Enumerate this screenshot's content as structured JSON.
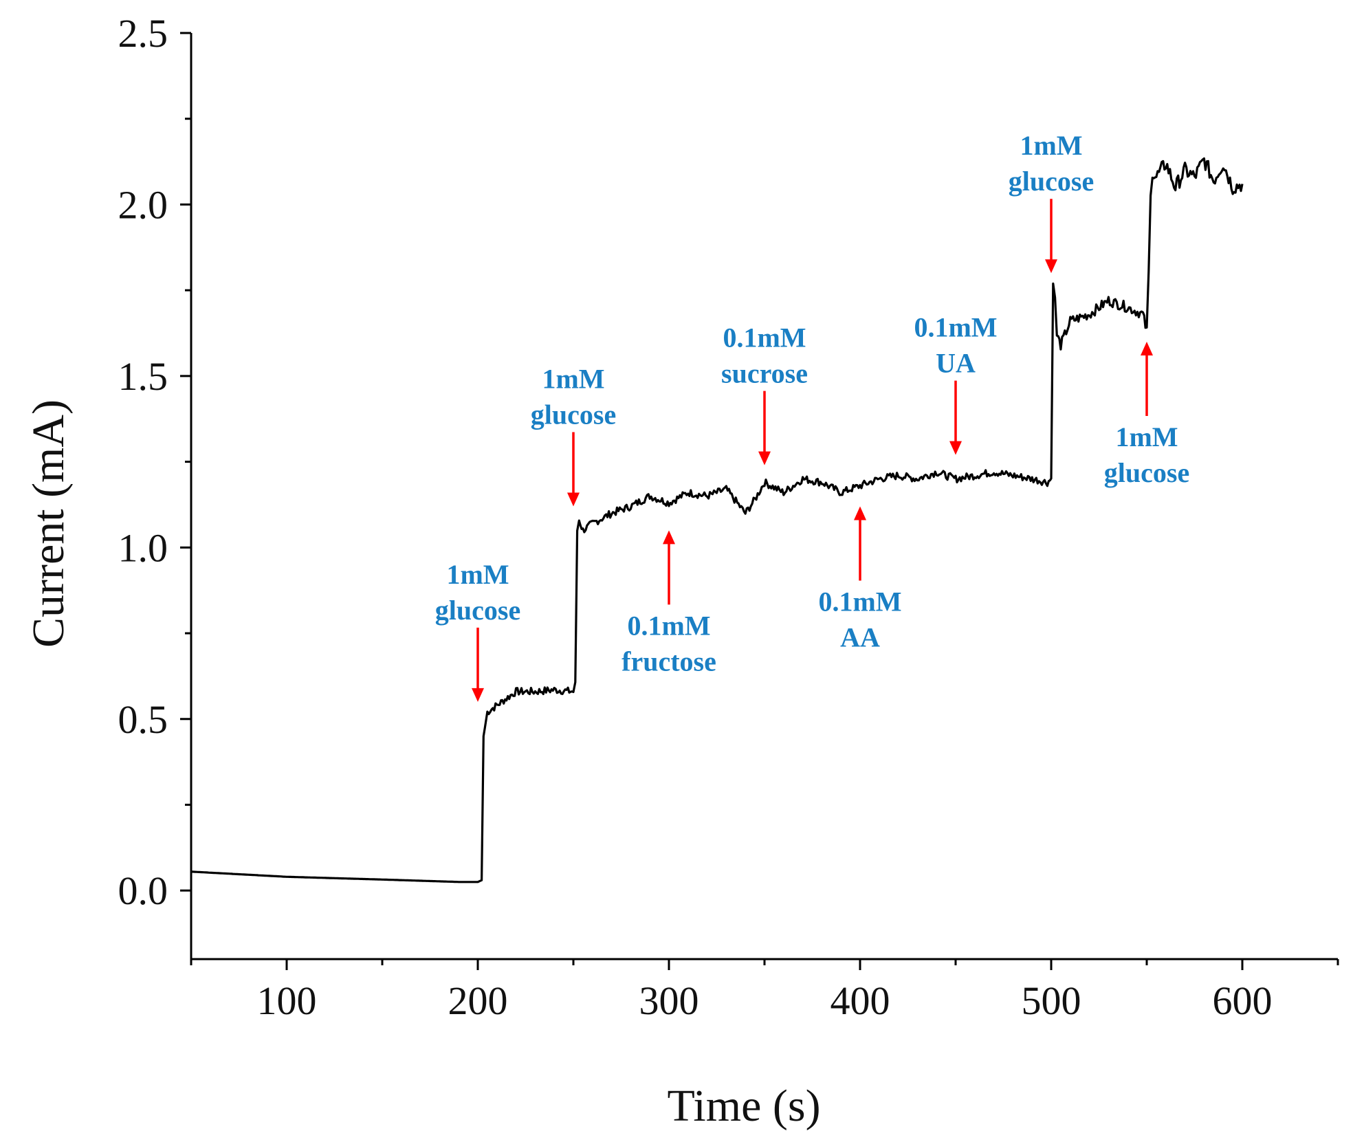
{
  "chart_data": {
    "type": "line",
    "title": "",
    "xlabel": "Time (s)",
    "ylabel": "Current (mA)",
    "xlim": [
      50,
      650
    ],
    "ylim": [
      -0.2,
      2.5
    ],
    "xticks": [
      100,
      200,
      300,
      400,
      500,
      600
    ],
    "xtick_labels": [
      "100",
      "200",
      "300",
      "400",
      "500",
      "600"
    ],
    "yticks": [
      0.0,
      0.5,
      1.0,
      1.5,
      2.0,
      2.5
    ],
    "ytick_labels": [
      "0.0",
      "0.5",
      "1.0",
      "1.5",
      "2.0",
      "2.5"
    ],
    "grid": false,
    "line_color": "#000000",
    "annotation_color": "#1a7fc4",
    "arrow_color": "#ff0000",
    "series": [
      {
        "name": "Current",
        "x": [
          50,
          100,
          150,
          190,
          200,
          202,
          203,
          205,
          210,
          220,
          230,
          240,
          250,
          251,
          252,
          253,
          255,
          260,
          270,
          280,
          290,
          300,
          310,
          320,
          330,
          340,
          345,
          350,
          360,
          370,
          380,
          390,
          400,
          410,
          420,
          430,
          440,
          450,
          460,
          470,
          480,
          490,
          498,
          500,
          501,
          502,
          503,
          505,
          510,
          520,
          530,
          540,
          548,
          550,
          551,
          552,
          553,
          555,
          560,
          565,
          570,
          575,
          580,
          585,
          590,
          595,
          600
        ],
        "y": [
          0.055,
          0.04,
          0.032,
          0.025,
          0.025,
          0.03,
          0.45,
          0.52,
          0.54,
          0.58,
          0.58,
          0.585,
          0.58,
          0.6,
          1.05,
          1.08,
          1.05,
          1.07,
          1.1,
          1.12,
          1.15,
          1.13,
          1.16,
          1.15,
          1.17,
          1.1,
          1.14,
          1.19,
          1.16,
          1.2,
          1.19,
          1.16,
          1.18,
          1.2,
          1.21,
          1.2,
          1.22,
          1.2,
          1.21,
          1.22,
          1.21,
          1.2,
          1.19,
          1.2,
          1.78,
          1.72,
          1.62,
          1.59,
          1.66,
          1.68,
          1.72,
          1.7,
          1.68,
          1.63,
          1.8,
          2.02,
          2.1,
          2.08,
          2.12,
          2.05,
          2.1,
          2.08,
          2.13,
          2.07,
          2.12,
          2.05,
          2.06
        ]
      }
    ],
    "annotations": [
      {
        "line1": "1mM",
        "line2": "glucose",
        "x": 200,
        "y_tip": 0.55,
        "direction": "down"
      },
      {
        "line1": "1mM",
        "line2": "glucose",
        "x": 250,
        "y_tip": 1.12,
        "direction": "down"
      },
      {
        "line1": "0.1mM",
        "line2": "fructose",
        "x": 300,
        "y_tip": 1.05,
        "direction": "up"
      },
      {
        "line1": "0.1mM",
        "line2": "sucrose",
        "x": 350,
        "y_tip": 1.24,
        "direction": "down"
      },
      {
        "line1": "0.1mM",
        "line2": "AA",
        "x": 400,
        "y_tip": 1.12,
        "direction": "up"
      },
      {
        "line1": "0.1mM",
        "line2": "UA",
        "x": 450,
        "y_tip": 1.27,
        "direction": "down"
      },
      {
        "line1": "1mM",
        "line2": "glucose",
        "x": 500,
        "y_tip": 1.8,
        "direction": "down"
      },
      {
        "line1": "1mM",
        "line2": "glucose",
        "x": 550,
        "y_tip": 1.6,
        "direction": "up"
      }
    ]
  }
}
